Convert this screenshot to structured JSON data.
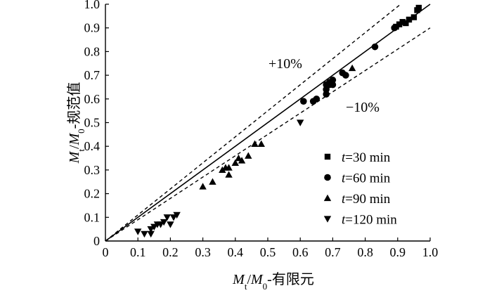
{
  "chart_data": {
    "type": "scatter",
    "xlabel": "M_t/M_0-有限元",
    "ylabel": "M_t/M_0-规范值",
    "xlim": [
      0,
      1.0
    ],
    "ylim": [
      0,
      1.0
    ],
    "xticks": [
      "0",
      "0.1",
      "0.2",
      "0.3",
      "0.4",
      "0.5",
      "0.6",
      "0.7",
      "0.8",
      "0.9",
      "1.0"
    ],
    "yticks": [
      "0",
      "0.1",
      "0.2",
      "0.3",
      "0.4",
      "0.5",
      "0.6",
      "0.7",
      "0.8",
      "0.9",
      "1.0"
    ],
    "grid": false,
    "legend_position": "bottom-right",
    "annotations": [
      "+10%",
      "−10%"
    ],
    "reference_lines": [
      {
        "kind": "solid",
        "slope": 1.0
      },
      {
        "kind": "dashed",
        "slope": 1.1
      },
      {
        "kind": "dashed",
        "slope": 0.9
      }
    ],
    "series": [
      {
        "name": "t=30 min",
        "marker": "square",
        "points": [
          [
            0.895,
            0.905
          ],
          [
            0.905,
            0.915
          ],
          [
            0.915,
            0.925
          ],
          [
            0.925,
            0.92
          ],
          [
            0.935,
            0.935
          ],
          [
            0.95,
            0.945
          ],
          [
            0.96,
            0.975
          ],
          [
            0.965,
            0.985
          ]
        ]
      },
      {
        "name": "t=60 min",
        "marker": "circle",
        "points": [
          [
            0.61,
            0.59
          ],
          [
            0.64,
            0.59
          ],
          [
            0.65,
            0.6
          ],
          [
            0.68,
            0.62
          ],
          [
            0.68,
            0.64
          ],
          [
            0.68,
            0.66
          ],
          [
            0.69,
            0.66
          ],
          [
            0.69,
            0.67
          ],
          [
            0.7,
            0.66
          ],
          [
            0.7,
            0.68
          ],
          [
            0.73,
            0.71
          ],
          [
            0.74,
            0.7
          ],
          [
            0.83,
            0.82
          ],
          [
            0.89,
            0.9
          ]
        ]
      },
      {
        "name": "t=90 min",
        "marker": "triangle-up",
        "points": [
          [
            0.3,
            0.23
          ],
          [
            0.33,
            0.25
          ],
          [
            0.36,
            0.3
          ],
          [
            0.37,
            0.31
          ],
          [
            0.38,
            0.31
          ],
          [
            0.38,
            0.28
          ],
          [
            0.4,
            0.33
          ],
          [
            0.41,
            0.35
          ],
          [
            0.42,
            0.34
          ],
          [
            0.44,
            0.36
          ],
          [
            0.46,
            0.41
          ],
          [
            0.48,
            0.41
          ],
          [
            0.76,
            0.73
          ]
        ]
      },
      {
        "name": "t=120 min",
        "marker": "triangle-down",
        "points": [
          [
            0.1,
            0.04
          ],
          [
            0.12,
            0.03
          ],
          [
            0.14,
            0.05
          ],
          [
            0.14,
            0.03
          ],
          [
            0.15,
            0.06
          ],
          [
            0.16,
            0.07
          ],
          [
            0.17,
            0.07
          ],
          [
            0.18,
            0.08
          ],
          [
            0.19,
            0.1
          ],
          [
            0.2,
            0.07
          ],
          [
            0.21,
            0.1
          ],
          [
            0.22,
            0.11
          ],
          [
            0.6,
            0.5
          ]
        ]
      }
    ]
  }
}
